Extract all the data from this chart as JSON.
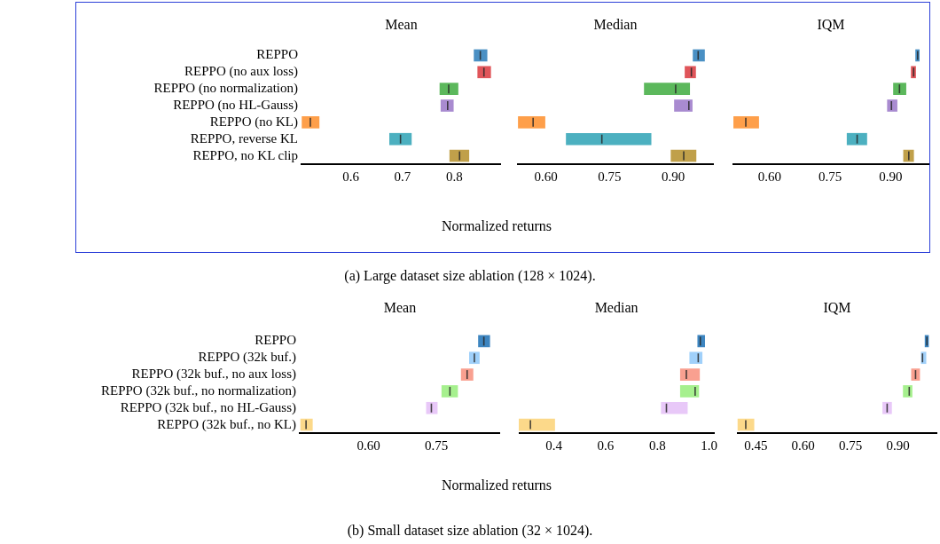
{
  "chart_data": [
    {
      "type": "box",
      "orientation": "horizontal",
      "title": "Mean",
      "categories": [
        "REPPO",
        "REPPO (no aux loss)",
        "REPPO (no normalization)",
        "REPPO (no HL-Gauss)",
        "REPPO (no KL)",
        "REPPO, reverse KL",
        "REPPO, no KL clip"
      ],
      "xlim": [
        0.505,
        0.89
      ],
      "xticks": [
        0.6,
        0.7,
        0.8
      ],
      "colors": [
        "#4a90c4",
        "#e0555a",
        "#5cb85c",
        "#a98bd0",
        "#fe9f4a",
        "#4cb0c0",
        "#c0a04a"
      ],
      "boxes": [
        {
          "low": 0.838,
          "q1": 0.838,
          "median": 0.85,
          "q3": 0.863,
          "high": 0.863
        },
        {
          "low": 0.845,
          "q1": 0.845,
          "median": 0.857,
          "q3": 0.87,
          "high": 0.87
        },
        {
          "low": 0.772,
          "q1": 0.772,
          "median": 0.789,
          "q3": 0.807,
          "high": 0.807
        },
        {
          "low": 0.774,
          "q1": 0.774,
          "median": 0.787,
          "q3": 0.798,
          "high": 0.798
        },
        {
          "low": 0.506,
          "q1": 0.506,
          "median": 0.522,
          "q3": 0.539,
          "high": 0.539
        },
        {
          "low": 0.675,
          "q1": 0.675,
          "median": 0.696,
          "q3": 0.717,
          "high": 0.717
        },
        {
          "low": 0.791,
          "q1": 0.791,
          "median": 0.81,
          "q3": 0.828,
          "high": 0.828
        }
      ]
    },
    {
      "type": "box",
      "orientation": "horizontal",
      "title": "Median",
      "xlabel": "Normalized returns",
      "annotations": [
        "(a) Large dataset size ablation (128 × 1024)."
      ],
      "tick_labels": "x",
      "categories": [
        null,
        null,
        null,
        null,
        null,
        null,
        null
      ],
      "xlim": [
        0.532,
        0.996
      ],
      "xticks": [
        {
          "value": 0.6,
          "label": "0.60"
        },
        0.75,
        {
          "value": 0.9,
          "label": "0.90"
        }
      ],
      "colors": [
        "#4a90c4",
        "#e0555a",
        "#5cb85c",
        "#a98bd0",
        "#fe9f4a",
        "#4cb0c0",
        "#c0a04a"
      ],
      "boxes": [
        {
          "low": 0.947,
          "q1": 0.947,
          "median": 0.959,
          "q3": 0.974,
          "high": 0.974
        },
        {
          "low": 0.928,
          "q1": 0.928,
          "median": 0.943,
          "q3": 0.953,
          "high": 0.953
        },
        {
          "low": 0.832,
          "q1": 0.832,
          "median": 0.906,
          "q3": 0.939,
          "high": 0.939
        },
        {
          "low": 0.903,
          "q1": 0.903,
          "median": 0.937,
          "q3": 0.945,
          "high": 0.945
        },
        {
          "low": 0.535,
          "q1": 0.535,
          "median": 0.57,
          "q3": 0.598,
          "high": 0.598
        },
        {
          "low": 0.648,
          "q1": 0.648,
          "median": 0.732,
          "q3": 0.848,
          "high": 0.848
        },
        {
          "low": 0.895,
          "q1": 0.895,
          "median": 0.925,
          "q3": 0.954,
          "high": 0.954
        }
      ]
    },
    {
      "type": "box",
      "orientation": "horizontal",
      "title": "IQM",
      "tick_labels": "x",
      "categories": [
        null,
        null,
        null,
        null,
        null,
        null,
        null
      ],
      "xlim": [
        0.508,
        0.996
      ],
      "xticks": [
        {
          "value": 0.6,
          "label": "0.60"
        },
        0.75,
        {
          "value": 0.9,
          "label": "0.90"
        }
      ],
      "colors": [
        "#4a90c4",
        "#e0555a",
        "#5cb85c",
        "#a98bd0",
        "#fe9f4a",
        "#4cb0c0",
        "#c0a04a"
      ],
      "boxes": [
        {
          "low": 0.962,
          "q1": 0.962,
          "median": 0.967,
          "q3": 0.971,
          "high": 0.971
        },
        {
          "low": 0.951,
          "q1": 0.951,
          "median": 0.957,
          "q3": 0.962,
          "high": 0.962
        },
        {
          "low": 0.907,
          "q1": 0.907,
          "median": 0.922,
          "q3": 0.938,
          "high": 0.938
        },
        {
          "low": 0.892,
          "q1": 0.892,
          "median": 0.902,
          "q3": 0.916,
          "high": 0.916
        },
        {
          "low": 0.511,
          "q1": 0.511,
          "median": 0.541,
          "q3": 0.573,
          "high": 0.573
        },
        {
          "low": 0.792,
          "q1": 0.792,
          "median": 0.817,
          "q3": 0.841,
          "high": 0.841
        },
        {
          "low": 0.932,
          "q1": 0.932,
          "median": 0.945,
          "q3": 0.957,
          "high": 0.957
        }
      ]
    },
    {
      "type": "box",
      "orientation": "horizontal",
      "title": "Mean",
      "categories": [
        "REPPO",
        "REPPO (32k buf.)",
        "REPPO (32k buf., no aux loss)",
        "REPPO (32k buf., no normalization)",
        "REPPO (32k buf., no HL-Gauss)",
        "REPPO (32k buf., no KL)"
      ],
      "xlim": [
        0.448,
        0.891
      ],
      "xticks": [
        {
          "value": 0.6,
          "label": "0.60"
        },
        0.75
      ],
      "colors": [
        "#3d85c0",
        "#a0d0fa",
        "#f9a090",
        "#a6f08e",
        "#e8c8f8",
        "#fcd98a"
      ],
      "boxes": [
        {
          "low": 0.843,
          "q1": 0.843,
          "median": 0.855,
          "q3": 0.868,
          "high": 0.868
        },
        {
          "low": 0.823,
          "q1": 0.823,
          "median": 0.834,
          "q3": 0.845,
          "high": 0.845
        },
        {
          "low": 0.805,
          "q1": 0.805,
          "median": 0.818,
          "q3": 0.831,
          "high": 0.831
        },
        {
          "low": 0.762,
          "q1": 0.762,
          "median": 0.78,
          "q3": 0.797,
          "high": 0.797
        },
        {
          "low": 0.728,
          "q1": 0.728,
          "median": 0.739,
          "q3": 0.752,
          "high": 0.752
        },
        {
          "low": 0.45,
          "q1": 0.45,
          "median": 0.462,
          "q3": 0.476,
          "high": 0.476
        }
      ]
    },
    {
      "type": "box",
      "orientation": "horizontal",
      "title": "Median",
      "xlabel": "Normalized returns",
      "annotations": [
        "(b) Small dataset size ablation (32 × 1024)."
      ],
      "tick_labels": "x",
      "categories": [
        null,
        null,
        null,
        null,
        null,
        null
      ],
      "xlim": [
        0.264,
        1.019
      ],
      "xticks": [
        0.4,
        0.6,
        0.8,
        {
          "value": 1.0,
          "label": "1.0"
        }
      ],
      "colors": [
        "#3d85c0",
        "#a0d0fa",
        "#f9a090",
        "#a6f08e",
        "#e8c8f8",
        "#fcd98a"
      ],
      "boxes": [
        {
          "low": 0.956,
          "q1": 0.956,
          "median": 0.966,
          "q3": 0.983,
          "high": 0.983
        },
        {
          "low": 0.925,
          "q1": 0.925,
          "median": 0.958,
          "q3": 0.973,
          "high": 0.973
        },
        {
          "low": 0.889,
          "q1": 0.889,
          "median": 0.912,
          "q3": 0.963,
          "high": 0.963
        },
        {
          "low": 0.889,
          "q1": 0.889,
          "median": 0.946,
          "q3": 0.96,
          "high": 0.96
        },
        {
          "low": 0.815,
          "q1": 0.815,
          "median": 0.835,
          "q3": 0.916,
          "high": 0.916
        },
        {
          "low": 0.265,
          "q1": 0.265,
          "median": 0.309,
          "q3": 0.403,
          "high": 0.403
        }
      ]
    },
    {
      "type": "box",
      "orientation": "horizontal",
      "title": "IQM",
      "tick_labels": "x",
      "categories": [
        null,
        null,
        null,
        null,
        null,
        null
      ],
      "xlim": [
        0.39,
        1.025
      ],
      "xticks": [
        0.45,
        {
          "value": 0.6,
          "label": "0.60"
        },
        0.75,
        {
          "value": 0.9,
          "label": "0.90"
        }
      ],
      "colors": [
        "#3d85c0",
        "#a0d0fa",
        "#f9a090",
        "#a6f08e",
        "#e8c8f8",
        "#fcd98a"
      ],
      "boxes": [
        {
          "low": 0.986,
          "q1": 0.986,
          "median": 0.992,
          "q3": 0.997,
          "high": 0.997
        },
        {
          "low": 0.974,
          "q1": 0.974,
          "median": 0.978,
          "q3": 0.989,
          "high": 0.989
        },
        {
          "low": 0.943,
          "q1": 0.943,
          "median": 0.956,
          "q3": 0.969,
          "high": 0.969
        },
        {
          "low": 0.917,
          "q1": 0.917,
          "median": 0.936,
          "q3": 0.945,
          "high": 0.945
        },
        {
          "low": 0.852,
          "q1": 0.852,
          "median": 0.866,
          "q3": 0.88,
          "high": 0.88
        },
        {
          "low": 0.393,
          "q1": 0.393,
          "median": 0.418,
          "q3": 0.444,
          "high": 0.444
        }
      ]
    }
  ]
}
